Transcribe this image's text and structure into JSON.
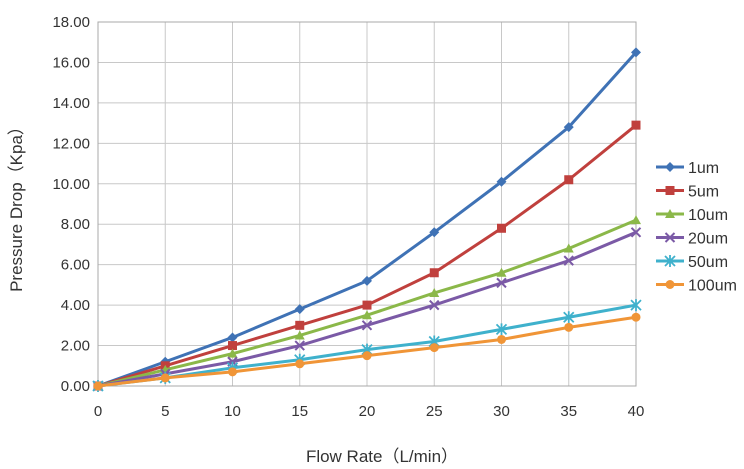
{
  "chart_data": {
    "type": "line",
    "title": "",
    "xlabel": "Flow Rate（L/min）",
    "ylabel": "Pressure Drop（Kpa）",
    "x": [
      0,
      5,
      10,
      15,
      20,
      25,
      30,
      35,
      40
    ],
    "xlim": [
      0,
      40
    ],
    "ylim": [
      0,
      18
    ],
    "xticks": [
      "0",
      "5",
      "10",
      "15",
      "20",
      "25",
      "30",
      "35",
      "40"
    ],
    "yticks": [
      "0.00",
      "2.00",
      "4.00",
      "6.00",
      "8.00",
      "10.00",
      "12.00",
      "14.00",
      "16.00",
      "18.00"
    ],
    "grid": true,
    "legend_position": "right",
    "series": [
      {
        "name": "1um",
        "color": "#3f72b5",
        "marker": "diamond",
        "values": [
          0,
          1.2,
          2.4,
          3.8,
          5.2,
          7.6,
          10.1,
          12.8,
          16.5
        ]
      },
      {
        "name": "5um",
        "color": "#c0403d",
        "marker": "square",
        "values": [
          0,
          1.0,
          2.0,
          3.0,
          4.0,
          5.6,
          7.8,
          10.2,
          12.9
        ]
      },
      {
        "name": "10um",
        "color": "#8bb849",
        "marker": "triangle",
        "values": [
          0,
          0.8,
          1.6,
          2.5,
          3.5,
          4.6,
          5.6,
          6.8,
          8.2
        ]
      },
      {
        "name": "20um",
        "color": "#7b5aa6",
        "marker": "x",
        "values": [
          0,
          0.6,
          1.2,
          2.0,
          3.0,
          4.0,
          5.1,
          6.2,
          7.6
        ]
      },
      {
        "name": "50um",
        "color": "#3fb1cc",
        "marker": "star",
        "values": [
          0,
          0.4,
          0.9,
          1.3,
          1.8,
          2.2,
          2.8,
          3.4,
          4.0
        ]
      },
      {
        "name": "100um",
        "color": "#f09537",
        "marker": "circle",
        "values": [
          0,
          0.4,
          0.7,
          1.1,
          1.5,
          1.9,
          2.3,
          2.9,
          3.4
        ]
      }
    ]
  }
}
